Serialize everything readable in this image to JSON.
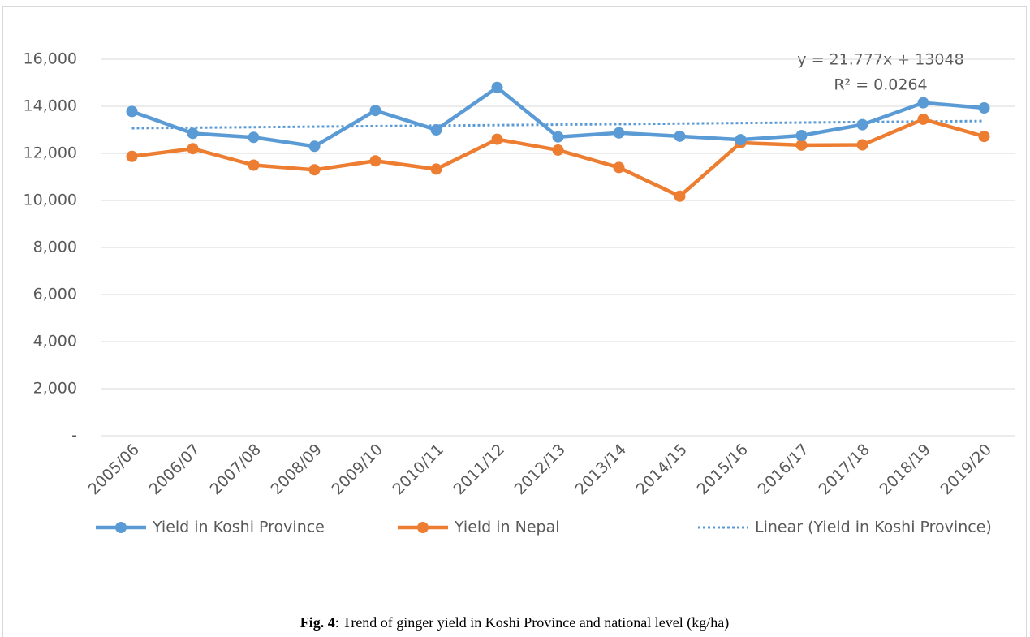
{
  "chart_data": {
    "type": "line",
    "categories": [
      "2005/06",
      "2006/07",
      "2007/08",
      "2008/09",
      "2009/10",
      "2010/11",
      "2011/12",
      "2012/13",
      "2013/14",
      "2014/15",
      "2015/16",
      "2016/17",
      "2017/18",
      "2018/19",
      "2019/20"
    ],
    "series": [
      {
        "name": "Yield in Koshi Province",
        "color": "#5b9bd5",
        "line_style": "solid",
        "marker": true,
        "values": [
          13780,
          12850,
          12680,
          12300,
          13820,
          13000,
          14800,
          12700,
          12870,
          12730,
          12580,
          12760,
          13220,
          14150,
          13930
        ]
      },
      {
        "name": "Yield in Nepal",
        "color": "#ed7d31",
        "line_style": "solid",
        "marker": true,
        "values": [
          11870,
          12200,
          11500,
          11300,
          11680,
          11330,
          12600,
          12140,
          11400,
          10180,
          12450,
          12350,
          12360,
          13450,
          12720
        ]
      },
      {
        "name": "Linear (Yield in Koshi Province)",
        "color": "#5b9bd5",
        "line_style": "dotted",
        "marker": false,
        "values": [
          13070,
          13091,
          13113,
          13135,
          13157,
          13179,
          13200,
          13222,
          13244,
          13266,
          13288,
          13309,
          13331,
          13353,
          13375
        ]
      }
    ],
    "ylim": [
      0,
      16000
    ],
    "yticks": [
      {
        "value": 0,
        "label": "-"
      },
      {
        "value": 2000,
        "label": "2,000"
      },
      {
        "value": 4000,
        "label": "4,000"
      },
      {
        "value": 6000,
        "label": "6,000"
      },
      {
        "value": 8000,
        "label": "8,000"
      },
      {
        "value": 10000,
        "label": "10,000"
      },
      {
        "value": 12000,
        "label": "12,000"
      },
      {
        "value": 14000,
        "label": "14,000"
      },
      {
        "value": 16000,
        "label": "16,000"
      }
    ],
    "grid": true,
    "legend": "bottom",
    "annotations": [
      "y = 21.777x + 13048",
      "R² = 0.0264"
    ]
  },
  "caption": {
    "label": "Fig. 4",
    "text": ": Trend of ginger yield in Koshi Province and national level (kg/ha)"
  }
}
